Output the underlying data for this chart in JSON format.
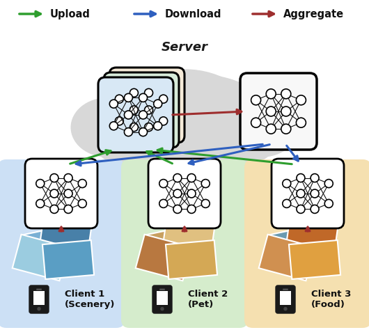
{
  "legend": {
    "upload_color": "#2e9e2e",
    "download_color": "#2e5fbf",
    "aggregate_color": "#9e2e2e",
    "upload_label": "Upload",
    "download_label": "Download",
    "aggregate_label": "Aggregate"
  },
  "cloud_color": "#d8d8d8",
  "client_colors": [
    "#cce0f5",
    "#d5eccc",
    "#f5e0b0"
  ],
  "client_labels": [
    "Client 1\n(Scenery)",
    "Client 2\n(Pet)",
    "Client 3\n(Food)"
  ],
  "server_label": "Server",
  "background_color": "#ffffff",
  "nn_bg_stacked": [
    "#f5ead8",
    "#d8ecda",
    "#d8e8f5"
  ],
  "nn_bg_global": "#f8f8f8",
  "nn_bg_client": "#ffffff"
}
